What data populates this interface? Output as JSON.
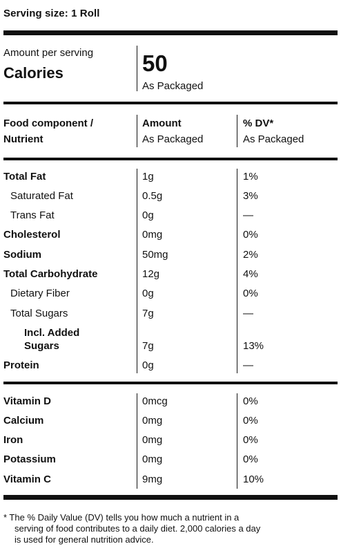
{
  "serving": "Serving size: 1 Roll",
  "calories": {
    "amount_per_serving": "Amount per serving",
    "label": "Calories",
    "value": "50",
    "basis": "As Packaged"
  },
  "table_header": {
    "col1_line1": "Food component /",
    "col1_line2": "Nutrient",
    "col2_line1": "Amount",
    "col2_line2": "As Packaged",
    "col3_line1": "% DV*",
    "col3_line2": "As Packaged"
  },
  "nutrients": [
    {
      "name": "Total Fat",
      "amount": "1g",
      "dv": "1%"
    },
    {
      "name": "Saturated Fat",
      "amount": "0.5g",
      "dv": "3%"
    },
    {
      "name": "Trans Fat",
      "amount": "0g",
      "dv": "—"
    },
    {
      "name": "Cholesterol",
      "amount": "0mg",
      "dv": "0%"
    },
    {
      "name": "Sodium",
      "amount": "50mg",
      "dv": "2%"
    },
    {
      "name": "Total Carbohydrate",
      "amount": "12g",
      "dv": "4%"
    },
    {
      "name": "Dietary Fiber",
      "amount": "0g",
      "dv": "0%"
    },
    {
      "name": "Total Sugars",
      "amount": "7g",
      "dv": "—"
    },
    {
      "name_line1": "Incl. Added",
      "name_line2": "Sugars",
      "amount": "7g",
      "dv": "13%"
    },
    {
      "name": "Protein",
      "amount": "0g",
      "dv": "—"
    }
  ],
  "vitamins": [
    {
      "name": "Vitamin D",
      "amount": "0mcg",
      "dv": "0%"
    },
    {
      "name": "Calcium",
      "amount": "0mg",
      "dv": "0%"
    },
    {
      "name": "Iron",
      "amount": "0mg",
      "dv": "0%"
    },
    {
      "name": "Potassium",
      "amount": "0mg",
      "dv": "0%"
    },
    {
      "name": "Vitamin C",
      "amount": "9mg",
      "dv": "10%"
    }
  ],
  "footnote": {
    "line1": "* The % Daily Value (DV) tells you how much a nutrient in a",
    "line2": "serving of food contributes to a daily diet. 2,000 calories a day",
    "line3": "is used for general nutrition advice."
  }
}
